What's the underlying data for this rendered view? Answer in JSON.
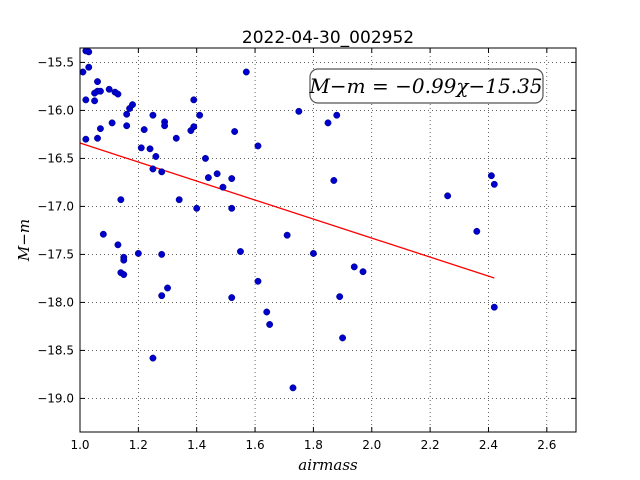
{
  "chart_data": {
    "type": "scatter",
    "title": "2022-04-30_002952",
    "xlabel": "airmass",
    "ylabel": "M−m",
    "xlim": [
      1.0,
      2.7
    ],
    "ylim": [
      -19.35,
      -15.35
    ],
    "y_inverted": true,
    "xticks": [
      "1.0",
      "1.2",
      "1.4",
      "1.6",
      "1.8",
      "2.0",
      "2.2",
      "2.4",
      "2.6"
    ],
    "yticks": [
      "−15.5",
      "−16.0",
      "−16.5",
      "−17.0",
      "−17.5",
      "−18.0",
      "−18.5",
      "−19.0"
    ],
    "grid": true,
    "annotation": "M−m = −0.99χ−15.35",
    "point_color": "#0000cc",
    "fit_color": "#ff0000",
    "fit_line": {
      "slope": -0.99,
      "intercept": -15.35,
      "x_start": 1.0,
      "x_end": 2.42
    },
    "points": [
      [
        1.01,
        -15.6
      ],
      [
        1.02,
        -15.38
      ],
      [
        1.03,
        -15.39
      ],
      [
        1.03,
        -15.55
      ],
      [
        1.02,
        -15.89
      ],
      [
        1.05,
        -15.9
      ],
      [
        1.06,
        -15.8
      ],
      [
        1.05,
        -15.82
      ],
      [
        1.06,
        -15.7
      ],
      [
        1.07,
        -15.8
      ],
      [
        1.1,
        -15.78
      ],
      [
        1.12,
        -15.81
      ],
      [
        1.13,
        -15.83
      ],
      [
        1.02,
        -16.3
      ],
      [
        1.06,
        -16.29
      ],
      [
        1.07,
        -16.19
      ],
      [
        1.11,
        -16.13
      ],
      [
        1.16,
        -16.16
      ],
      [
        1.16,
        -16.04
      ],
      [
        1.17,
        -15.98
      ],
      [
        1.18,
        -15.94
      ],
      [
        1.21,
        -16.39
      ],
      [
        1.22,
        -16.2
      ],
      [
        1.24,
        -16.4
      ],
      [
        1.25,
        -16.05
      ],
      [
        1.26,
        -16.48
      ],
      [
        1.25,
        -16.61
      ],
      [
        1.28,
        -16.64
      ],
      [
        1.29,
        -16.12
      ],
      [
        1.29,
        -16.16
      ],
      [
        1.14,
        -16.93
      ],
      [
        1.08,
        -17.29
      ],
      [
        1.13,
        -17.4
      ],
      [
        1.15,
        -17.53
      ],
      [
        1.15,
        -17.56
      ],
      [
        1.14,
        -17.69
      ],
      [
        1.15,
        -17.71
      ],
      [
        1.2,
        -17.49
      ],
      [
        1.28,
        -17.5
      ],
      [
        1.3,
        -17.85
      ],
      [
        1.28,
        -17.93
      ],
      [
        1.25,
        -18.58
      ],
      [
        1.33,
        -16.29
      ],
      [
        1.34,
        -16.93
      ],
      [
        1.38,
        -16.21
      ],
      [
        1.39,
        -16.17
      ],
      [
        1.39,
        -15.89
      ],
      [
        1.41,
        -16.05
      ],
      [
        1.4,
        -17.02
      ],
      [
        1.43,
        -16.5
      ],
      [
        1.44,
        -16.7
      ],
      [
        1.47,
        -16.66
      ],
      [
        1.49,
        -16.8
      ],
      [
        1.52,
        -16.71
      ],
      [
        1.52,
        -17.02
      ],
      [
        1.53,
        -16.22
      ],
      [
        1.55,
        -17.47
      ],
      [
        1.57,
        -15.6
      ],
      [
        1.52,
        -17.95
      ],
      [
        1.61,
        -16.37
      ],
      [
        1.61,
        -17.78
      ],
      [
        1.64,
        -18.1
      ],
      [
        1.65,
        -18.23
      ],
      [
        1.71,
        -17.3
      ],
      [
        1.73,
        -18.89
      ],
      [
        1.75,
        -16.01
      ],
      [
        1.8,
        -17.49
      ],
      [
        1.85,
        -16.13
      ],
      [
        1.88,
        -16.05
      ],
      [
        1.87,
        -16.73
      ],
      [
        1.89,
        -17.94
      ],
      [
        1.9,
        -18.37
      ],
      [
        1.94,
        -17.63
      ],
      [
        1.97,
        -17.68
      ],
      [
        2.26,
        -16.89
      ],
      [
        2.36,
        -17.26
      ],
      [
        2.41,
        -16.68
      ],
      [
        2.42,
        -16.77
      ],
      [
        2.42,
        -18.05
      ]
    ]
  }
}
